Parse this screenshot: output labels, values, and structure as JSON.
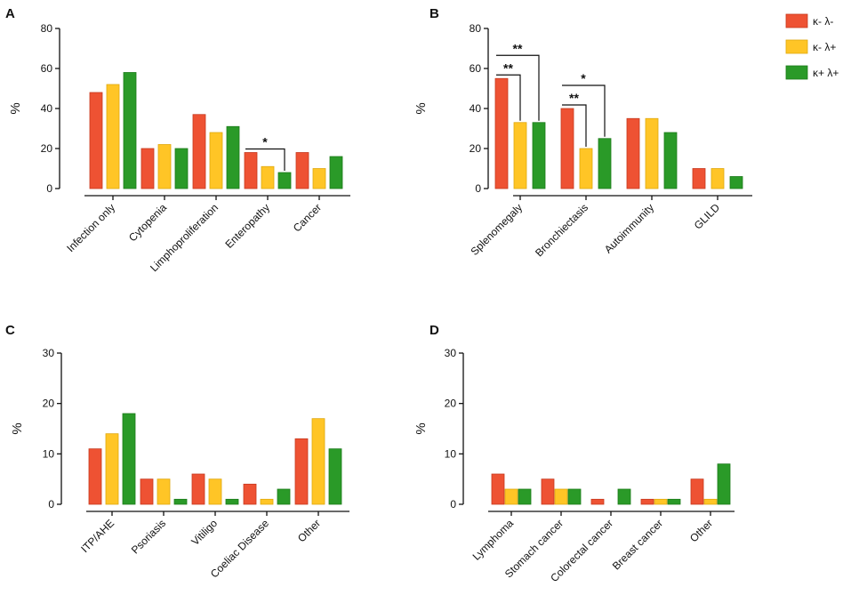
{
  "legend": {
    "items": [
      {
        "label": "κ- λ-",
        "color": "#EE5233"
      },
      {
        "label": "κ- λ+",
        "color": "#FFC526"
      },
      {
        "label": "κ+ λ+",
        "color": "#2A9A28"
      }
    ]
  },
  "chart_data": [
    {
      "panel": "A",
      "type": "bar",
      "ylabel": "%",
      "ylim": [
        0,
        80
      ],
      "yticks": [
        0,
        20,
        40,
        60,
        80
      ],
      "categories": [
        "Infection only",
        "Cytopenia",
        "Limphoproliferation",
        "Enteropathy",
        "Cancer"
      ],
      "series": [
        {
          "name": "κ- λ-",
          "values": [
            48,
            20,
            37,
            18,
            18
          ]
        },
        {
          "name": "κ- λ+",
          "values": [
            52,
            22,
            28,
            11,
            10
          ]
        },
        {
          "name": "κ+ λ+",
          "values": [
            58,
            20,
            31,
            8,
            16
          ]
        }
      ],
      "annotations": [
        {
          "label": "*",
          "category": 3,
          "from": 0,
          "to": 2
        }
      ]
    },
    {
      "panel": "B",
      "type": "bar",
      "ylabel": "%",
      "ylim": [
        0,
        80
      ],
      "yticks": [
        0,
        20,
        40,
        60,
        80
      ],
      "categories": [
        "Splenomegaly",
        "Bronchiectasis",
        "Autoimmunity",
        "GLILD"
      ],
      "series": [
        {
          "name": "κ- λ-",
          "values": [
            55,
            40,
            35,
            10
          ]
        },
        {
          "name": "κ- λ+",
          "values": [
            33,
            20,
            35,
            10
          ]
        },
        {
          "name": "κ+ λ+",
          "values": [
            33,
            25,
            28,
            6
          ]
        }
      ],
      "annotations": [
        {
          "label": "**",
          "category": 0,
          "from": 0,
          "to": 1
        },
        {
          "label": "**",
          "category": 0,
          "from": 0,
          "to": 2
        },
        {
          "label": "**",
          "category": 1,
          "from": 0,
          "to": 1
        },
        {
          "label": "*",
          "category": 1,
          "from": 0,
          "to": 2
        }
      ]
    },
    {
      "panel": "C",
      "type": "bar",
      "ylabel": "%",
      "ylim": [
        0,
        30
      ],
      "yticks": [
        0,
        10,
        20,
        30
      ],
      "categories": [
        "ITP/AHE",
        "Psoriasis",
        "Vitiligo",
        "Coeliac Disease",
        "Other"
      ],
      "series": [
        {
          "name": "κ- λ-",
          "values": [
            11,
            5,
            6,
            4,
            13
          ]
        },
        {
          "name": "κ- λ+",
          "values": [
            14,
            5,
            5,
            1,
            17
          ]
        },
        {
          "name": "κ+ λ+",
          "values": [
            18,
            1,
            1,
            3,
            11
          ]
        }
      ],
      "annotations": []
    },
    {
      "panel": "D",
      "type": "bar",
      "ylabel": "%",
      "ylim": [
        0,
        30
      ],
      "yticks": [
        0,
        10,
        20,
        30
      ],
      "categories": [
        "Lymphoma",
        "Stomach cancer",
        "Colorectal cancer",
        "Breast cancer",
        "Other"
      ],
      "series": [
        {
          "name": "κ- λ-",
          "values": [
            6,
            5,
            1,
            1,
            5
          ]
        },
        {
          "name": "κ- λ+",
          "values": [
            3,
            3,
            0,
            1,
            1
          ]
        },
        {
          "name": "κ+ λ+",
          "values": [
            3,
            3,
            3,
            1,
            8
          ]
        }
      ],
      "annotations": []
    }
  ]
}
